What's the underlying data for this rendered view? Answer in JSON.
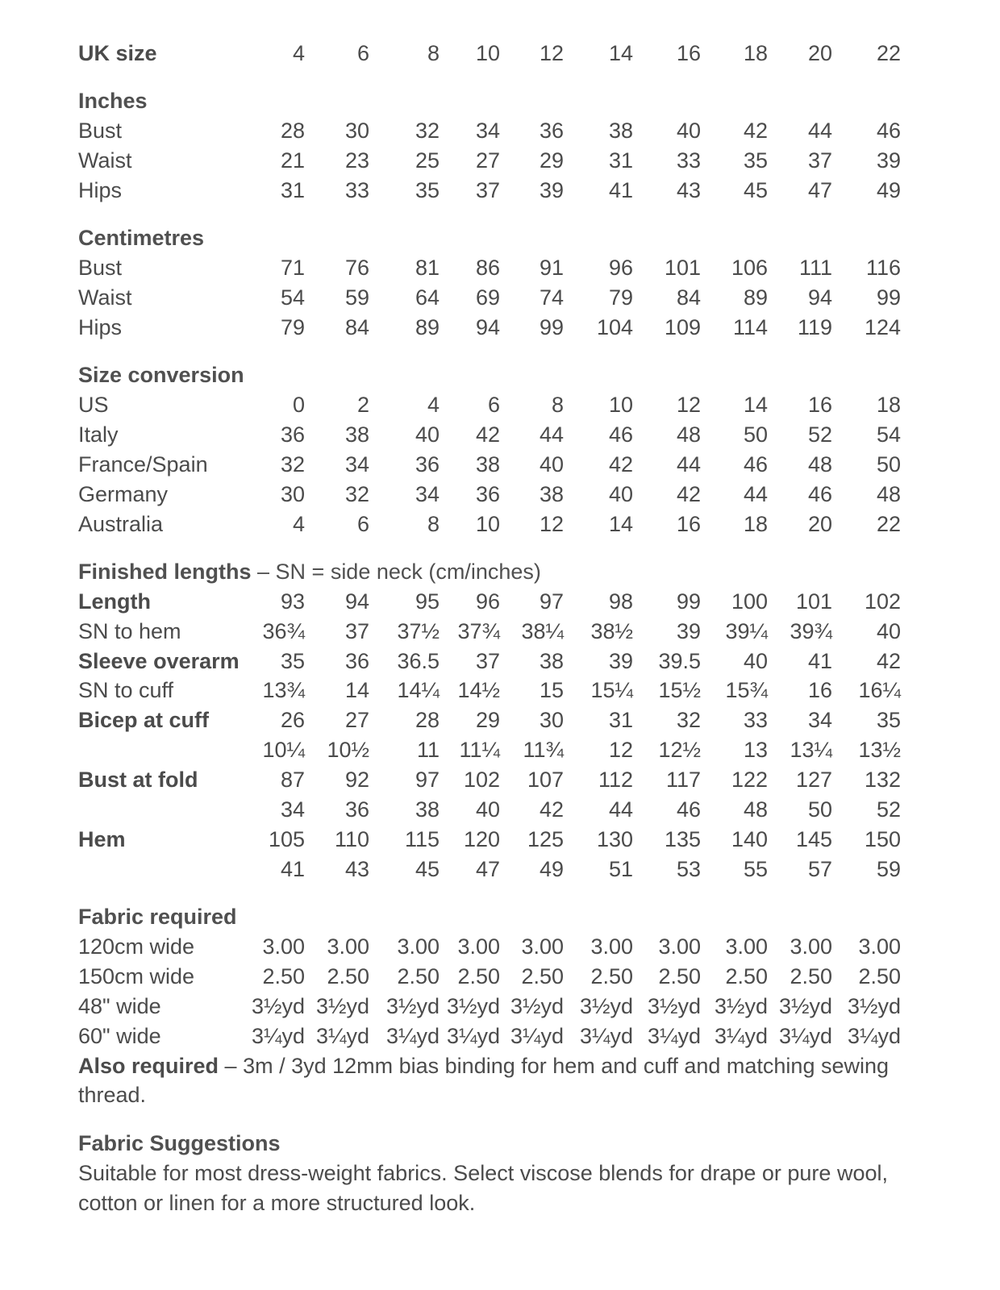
{
  "sections": [
    {
      "heading": "",
      "rows": [
        {
          "label": "UK size",
          "bold": true,
          "values": [
            "4",
            "6",
            "8",
            "10",
            "12",
            "14",
            "16",
            "18",
            "20",
            "22"
          ]
        }
      ]
    },
    {
      "heading": "Inches",
      "rows": [
        {
          "label": "Bust",
          "values": [
            "28",
            "30",
            "32",
            "34",
            "36",
            "38",
            "40",
            "42",
            "44",
            "46"
          ]
        },
        {
          "label": "Waist",
          "values": [
            "21",
            "23",
            "25",
            "27",
            "29",
            "31",
            "33",
            "35",
            "37",
            "39"
          ]
        },
        {
          "label": "Hips",
          "values": [
            "31",
            "33",
            "35",
            "37",
            "39",
            "41",
            "43",
            "45",
            "47",
            "49"
          ]
        }
      ]
    },
    {
      "heading": "Centimetres",
      "rows": [
        {
          "label": "Bust",
          "values": [
            "71",
            "76",
            "81",
            "86",
            "91",
            "96",
            "101",
            "106",
            "111",
            "116"
          ]
        },
        {
          "label": "Waist",
          "values": [
            "54",
            "59",
            "64",
            "69",
            "74",
            "79",
            "84",
            "89",
            "94",
            "99"
          ]
        },
        {
          "label": "Hips",
          "values": [
            "79",
            "84",
            "89",
            "94",
            "99",
            "104",
            "109",
            "114",
            "119",
            "124"
          ]
        }
      ]
    },
    {
      "heading": "Size conversion",
      "rows": [
        {
          "label": "US",
          "values": [
            "0",
            "2",
            "4",
            "6",
            "8",
            "10",
            "12",
            "14",
            "16",
            "18"
          ]
        },
        {
          "label": "Italy",
          "values": [
            "36",
            "38",
            "40",
            "42",
            "44",
            "46",
            "48",
            "50",
            "52",
            "54"
          ]
        },
        {
          "label": "France/Spain",
          "values": [
            "32",
            "34",
            "36",
            "38",
            "40",
            "42",
            "44",
            "46",
            "48",
            "50"
          ]
        },
        {
          "label": "Germany",
          "values": [
            "30",
            "32",
            "34",
            "36",
            "38",
            "40",
            "42",
            "44",
            "46",
            "48"
          ]
        },
        {
          "label": "Australia",
          "values": [
            "4",
            "6",
            "8",
            "10",
            "12",
            "14",
            "16",
            "18",
            "20",
            "22"
          ]
        }
      ]
    },
    {
      "heading": "Finished lengths",
      "heading_note": " – SN = side neck (cm/inches)",
      "rows": [
        {
          "label": "Length",
          "bold": true,
          "values": [
            "93",
            "94",
            "95",
            "96",
            "97",
            "98",
            "99",
            "100",
            "101",
            "102"
          ]
        },
        {
          "label": "SN to hem",
          "values": [
            "36¾",
            "37",
            "37½",
            "37¾",
            "38¼",
            "38½",
            "39",
            "39¼",
            "39¾",
            "40"
          ]
        },
        {
          "label": "Sleeve overarm",
          "bold": true,
          "values": [
            "35",
            "36",
            "36.5",
            "37",
            "38",
            "39",
            "39.5",
            "40",
            "41",
            "42"
          ]
        },
        {
          "label": "SN to cuff",
          "values": [
            "13¾",
            "14",
            "14¼",
            "14½",
            "15",
            "15¼",
            "15½",
            "15¾",
            "16",
            "16¼"
          ]
        },
        {
          "label": "Bicep at cuff",
          "bold": true,
          "values": [
            "26",
            "27",
            "28",
            "29",
            "30",
            "31",
            "32",
            "33",
            "34",
            "35"
          ]
        },
        {
          "label": "",
          "values": [
            "10¼",
            "10½",
            "11",
            "11¼",
            "11¾",
            "12",
            "12½",
            "13",
            "13¼",
            "13½"
          ]
        },
        {
          "label": "Bust at fold",
          "bold": true,
          "values": [
            "87",
            "92",
            "97",
            "102",
            "107",
            "112",
            "117",
            "122",
            "127",
            "132"
          ]
        },
        {
          "label": "",
          "values": [
            "34",
            "36",
            "38",
            "40",
            "42",
            "44",
            "46",
            "48",
            "50",
            "52"
          ]
        },
        {
          "label": "Hem",
          "bold": true,
          "values": [
            "105",
            "110",
            "115",
            "120",
            "125",
            "130",
            "135",
            "140",
            "145",
            "150"
          ]
        },
        {
          "label": "",
          "values": [
            "41",
            "43",
            "45",
            "47",
            "49",
            "51",
            "53",
            "55",
            "57",
            "59"
          ]
        }
      ]
    },
    {
      "heading": "Fabric required",
      "rows": [
        {
          "label": "120cm wide",
          "values": [
            "3.00",
            "3.00",
            "3.00",
            "3.00",
            "3.00",
            "3.00",
            "3.00",
            "3.00",
            "3.00",
            "3.00"
          ]
        },
        {
          "label": "150cm wide",
          "values": [
            "2.50",
            "2.50",
            "2.50",
            "2.50",
            "2.50",
            "2.50",
            "2.50",
            "2.50",
            "2.50",
            "2.50"
          ]
        },
        {
          "label": "48\" wide",
          "values": [
            "3½yd",
            "3½yd",
            "3½yd",
            "3½yd",
            "3½yd",
            "3½yd",
            "3½yd",
            "3½yd",
            "3½yd",
            "3½yd"
          ]
        },
        {
          "label": "60\" wide",
          "values": [
            "3¼yd",
            "3¼yd",
            "3¼yd",
            "3¼yd",
            "3¼yd",
            "3¼yd",
            "3¼yd",
            "3¼yd",
            "3¼yd",
            "3¼yd"
          ]
        }
      ]
    }
  ],
  "also_required": {
    "label": "Also required",
    "text": " – 3m / 3yd 12mm bias binding for hem and cuff and matching sewing thread."
  },
  "fabric_suggestions": {
    "heading": "Fabric Suggestions",
    "text": "Suitable for most dress-weight fabrics. Select viscose blends for drape or pure wool, cotton or linen for a more structured look."
  }
}
